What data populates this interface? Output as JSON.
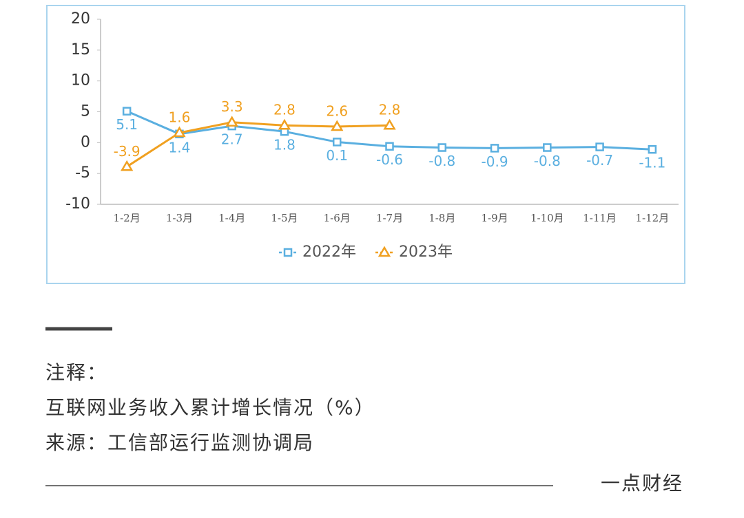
{
  "chart_data": {
    "type": "line",
    "categories": [
      "1-2月",
      "1-3月",
      "1-4月",
      "1-5月",
      "1-6月",
      "1-7月",
      "1-8月",
      "1-9月",
      "1-10月",
      "1-11月",
      "1-12月"
    ],
    "series": [
      {
        "name": "2022年",
        "color": "#5aafe0",
        "marker": "square",
        "label_position": "below",
        "values": [
          5.1,
          1.4,
          2.7,
          1.8,
          0.1,
          -0.6,
          -0.8,
          -0.9,
          -0.8,
          -0.7,
          -1.1
        ]
      },
      {
        "name": "2023年",
        "color": "#f0a020",
        "marker": "triangle",
        "label_position": "above",
        "values": [
          -3.9,
          1.6,
          3.3,
          2.8,
          2.6,
          2.8,
          null,
          null,
          null,
          null,
          null
        ]
      }
    ],
    "ylim": [
      -10,
      20
    ],
    "yticks": [
      -10,
      -5,
      0,
      5,
      10,
      15,
      20
    ],
    "grid": false,
    "legend": "bottom"
  },
  "notes": {
    "heading": "注释：",
    "lines": [
      "互联网业务收入累计增长情况（%）",
      "来源：工信部运行监测协调局"
    ]
  },
  "brand": "一点财经"
}
